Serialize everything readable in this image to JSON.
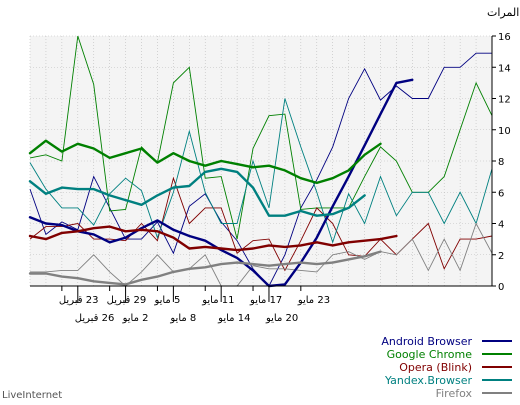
{
  "brand": "LiveInternet",
  "chart_data": {
    "type": "line",
    "unit_label": "المرات",
    "ylim": [
      0,
      16
    ],
    "yticks": [
      0,
      2,
      4,
      6,
      8,
      10,
      12,
      14,
      16
    ],
    "grid": true,
    "legend_position": "bottom-right",
    "xlim": [
      -29,
      0
    ],
    "x_ticks_top": [
      {
        "x": -27,
        "label": "23 قبريل"
      },
      {
        "x": -24,
        "label": "29 قبريل"
      },
      {
        "x": -21,
        "label": "5 مايو"
      },
      {
        "x": -18,
        "label": "11 مايو"
      },
      {
        "x": -15,
        "label": "17 مايو"
      },
      {
        "x": -12,
        "label": "23 مايو"
      }
    ],
    "x_ticks_bottom": [
      {
        "x": -26,
        "label": "26 قبريل"
      },
      {
        "x": -23,
        "label": "2 مايو"
      },
      {
        "x": -20,
        "label": "8 مايو"
      },
      {
        "x": -17,
        "label": "14 مايو"
      },
      {
        "x": -14,
        "label": "20 مايو"
      }
    ],
    "x": [
      -29,
      -28,
      -27,
      -26,
      -25,
      -24,
      -23,
      -22,
      -21,
      -20,
      -19,
      -18,
      -17,
      -16,
      -15,
      -14,
      -13,
      -12,
      -11,
      -10,
      -9,
      -8,
      -7,
      -6,
      -5,
      -4,
      -3,
      -2,
      -1,
      0
    ],
    "series": [
      {
        "name": "Android Browser",
        "color": "#000080",
        "daily": [
          6.2,
          3.3,
          4.1,
          3.6,
          7,
          5,
          3,
          3,
          4.1,
          2.1,
          5.1,
          5.9,
          4.1,
          2.9,
          1.1,
          0,
          2,
          5,
          6.8,
          8.9,
          12,
          13.9,
          11.9,
          12.8,
          12,
          12,
          14,
          14,
          14.9,
          14.9
        ],
        "smoothed": [
          4.4,
          4,
          3.9,
          3.5,
          3.3,
          2.8,
          3.1,
          3.7,
          4.2,
          3.6,
          3.2,
          2.9,
          2.3,
          1.8,
          1,
          0,
          0.1,
          1.5,
          3.1,
          5.1,
          7,
          9,
          11,
          13,
          13.2,
          null,
          null,
          null,
          null,
          null
        ]
      },
      {
        "name": "Google Chrome",
        "color": "#008000",
        "daily": [
          8.2,
          8.4,
          8,
          16,
          12.9,
          4.8,
          4.9,
          8.9,
          7.9,
          13,
          14,
          6.9,
          7,
          3,
          8.8,
          10.9,
          11,
          4.9,
          5,
          5,
          5,
          7,
          8.9,
          8,
          6,
          6,
          7,
          10,
          13,
          10.9
        ],
        "smoothed": [
          8.5,
          9.3,
          8.6,
          9.1,
          8.8,
          8.2,
          8.5,
          8.8,
          7.9,
          8.5,
          8,
          7.7,
          8,
          7.8,
          7.6,
          7.7,
          7.4,
          6.9,
          6.6,
          6.9,
          7.4,
          8.4,
          9.1,
          null,
          null,
          null,
          null,
          null,
          null,
          null
        ]
      },
      {
        "name": "Opera (Blink)",
        "color": "#800000",
        "daily": [
          3,
          3.8,
          3.8,
          4,
          3,
          3,
          2.9,
          4,
          2.9,
          6.9,
          4,
          5,
          5,
          2.1,
          2.9,
          3,
          1,
          2.9,
          5,
          4,
          2,
          1.9,
          3,
          2,
          3,
          4,
          1.1,
          3,
          3,
          3.2
        ],
        "smoothed": [
          3.2,
          3,
          3.4,
          3.5,
          3.7,
          3.8,
          3.5,
          3.6,
          3.5,
          3.1,
          2.4,
          2.5,
          2.4,
          2.3,
          2.4,
          2.6,
          2.5,
          2.6,
          2.8,
          2.6,
          2.8,
          2.9,
          3,
          3.2,
          null,
          null,
          null,
          null,
          null,
          null
        ]
      },
      {
        "name": "Yandex.Browser",
        "color": "#008080",
        "daily": [
          7.9,
          6.2,
          5,
          5,
          3.9,
          5.9,
          6.9,
          6.1,
          3.1,
          6,
          9.9,
          6,
          4,
          4,
          8,
          5,
          12,
          8.9,
          6,
          2.8,
          5.9,
          4,
          7,
          4.5,
          6,
          6,
          4,
          6,
          4,
          7.5
        ],
        "smoothed": [
          6.7,
          5.9,
          6.3,
          6.2,
          6.2,
          5.8,
          5.5,
          5.2,
          5.8,
          6.3,
          6.4,
          7.3,
          7.5,
          7.3,
          6.3,
          4.5,
          4.5,
          4.8,
          4.5,
          4.6,
          5,
          5.8,
          null,
          null,
          null,
          null,
          null,
          null,
          null,
          null
        ]
      },
      {
        "name": "Firefox",
        "color": "#808080",
        "daily": [
          0.9,
          0.9,
          1,
          1,
          2,
          0.9,
          0,
          0.9,
          2,
          0.9,
          1.1,
          2,
          0,
          0,
          1.3,
          1.1,
          1.1,
          1,
          0.9,
          2,
          2.2,
          1.7,
          2.2,
          2,
          3,
          1,
          3,
          1,
          4,
          2.1
        ],
        "smoothed": [
          0.8,
          0.8,
          0.6,
          0.5,
          0.3,
          0.2,
          0.1,
          0.4,
          0.6,
          0.9,
          1.1,
          1.2,
          1.4,
          1.5,
          1.4,
          1.3,
          1.4,
          1.5,
          1.4,
          1.5,
          1.7,
          1.9,
          2.2,
          null,
          null,
          null,
          null,
          null,
          null,
          null
        ]
      }
    ]
  }
}
